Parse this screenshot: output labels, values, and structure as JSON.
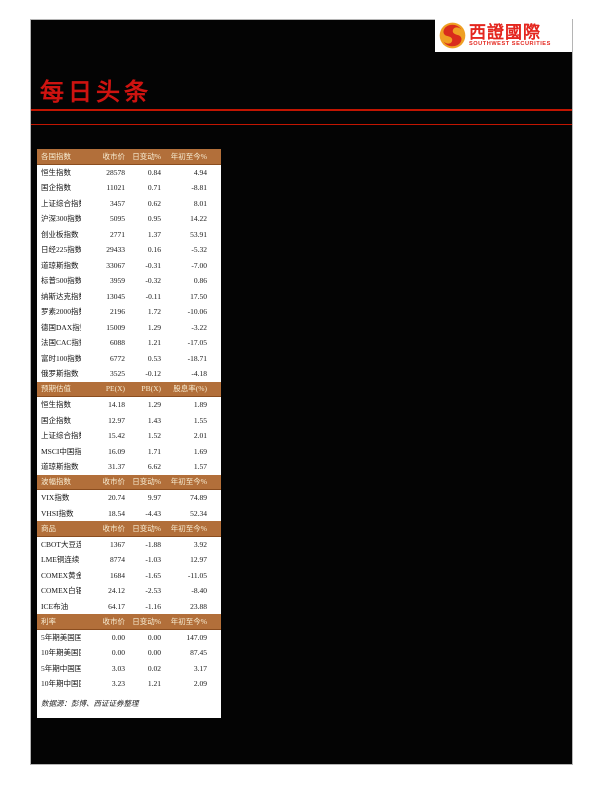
{
  "logo": {
    "cn": "西證國際",
    "en": "SOUTHWEST SECURITIES"
  },
  "page_title": "每日头条",
  "colors": {
    "accent_red": "#ce1310",
    "rule_red": "#c21501",
    "table_header_bg": "#b26f3a",
    "table_header_text": "#f7ecd2",
    "logo_red": "#e4261e",
    "logo_gold": "#efa023",
    "panel_black": "#040404"
  },
  "table": {
    "sections": [
      {
        "header": [
          "各国指数",
          "收市价",
          "日变动%",
          "年初至今%"
        ],
        "rows": [
          [
            "恒生指数",
            "28578",
            "0.84",
            "4.94"
          ],
          [
            "国企指数",
            "11021",
            "0.71",
            "-8.81"
          ],
          [
            "上证综合指数",
            "3457",
            "0.62",
            "8.01"
          ],
          [
            "沪深300指数",
            "5095",
            "0.95",
            "14.22"
          ],
          [
            "创业板指数",
            "2771",
            "1.37",
            "53.91"
          ],
          [
            "日经225指数",
            "29433",
            "0.16",
            "-5.32"
          ],
          [
            "道琼斯指数",
            "33067",
            "-0.31",
            "-7.00"
          ],
          [
            "标普500指数",
            "3959",
            "-0.32",
            "0.86"
          ],
          [
            "纳斯达克指数",
            "13045",
            "-0.11",
            "17.50"
          ],
          [
            "罗素2000指数",
            "2196",
            "1.72",
            "-10.06"
          ],
          [
            "德国DAX指数",
            "15009",
            "1.29",
            "-3.22"
          ],
          [
            "法国CAC指数",
            "6088",
            "1.21",
            "-17.05"
          ],
          [
            "富时100指数",
            "6772",
            "0.53",
            "-18.71"
          ],
          [
            "俄罗斯指数",
            "3525",
            "-0.12",
            "-4.18"
          ]
        ]
      },
      {
        "header": [
          "预期估值",
          "PE(X)",
          "PB(X)",
          "股息率(%)"
        ],
        "rows": [
          [
            "恒生指数",
            "14.18",
            "1.29",
            "1.89"
          ],
          [
            "国企指数",
            "12.97",
            "1.43",
            "1.55"
          ],
          [
            "上证综合指数",
            "15.42",
            "1.52",
            "2.01"
          ],
          [
            "MSCI中国指数",
            "16.09",
            "1.71",
            "1.69"
          ],
          [
            "道琼斯指数",
            "31.37",
            "6.62",
            "1.57"
          ]
        ]
      },
      {
        "header": [
          "波幅指数",
          "收市价",
          "日变动%",
          "年初至今%"
        ],
        "rows": [
          [
            "VIX指数",
            "20.74",
            "9.97",
            "74.89"
          ],
          [
            "VHSI指数",
            "18.54",
            "-4.43",
            "52.34"
          ]
        ]
      },
      {
        "header": [
          "商品",
          "收市价",
          "日变动%",
          "年初至今%"
        ],
        "rows": [
          [
            "CBOT大豆连续",
            "1367",
            "-1.88",
            "3.92"
          ],
          [
            "LME铜连续",
            "8774",
            "-1.03",
            "12.97"
          ],
          [
            "COMEX黄金连续",
            "1684",
            "-1.65",
            "-11.05"
          ],
          [
            "COMEX白银连续",
            "24.12",
            "-2.53",
            "-8.40"
          ],
          [
            "ICE布油",
            "64.17",
            "-1.16",
            "23.88"
          ]
        ]
      },
      {
        "header": [
          "利率",
          "收市价",
          "日变动%",
          "年初至今%"
        ],
        "rows": [
          [
            "5年期美国国债",
            "0.00",
            "0.00",
            "147.09"
          ],
          [
            "10年期美国国债",
            "0.00",
            "0.00",
            "87.45"
          ],
          [
            "5年期中国国债",
            "3.03",
            "0.02",
            "3.17"
          ],
          [
            "10年期中国国债",
            "3.23",
            "1.21",
            "2.09"
          ]
        ]
      }
    ],
    "source_note": "数据源：彭博、西证证券整理"
  }
}
